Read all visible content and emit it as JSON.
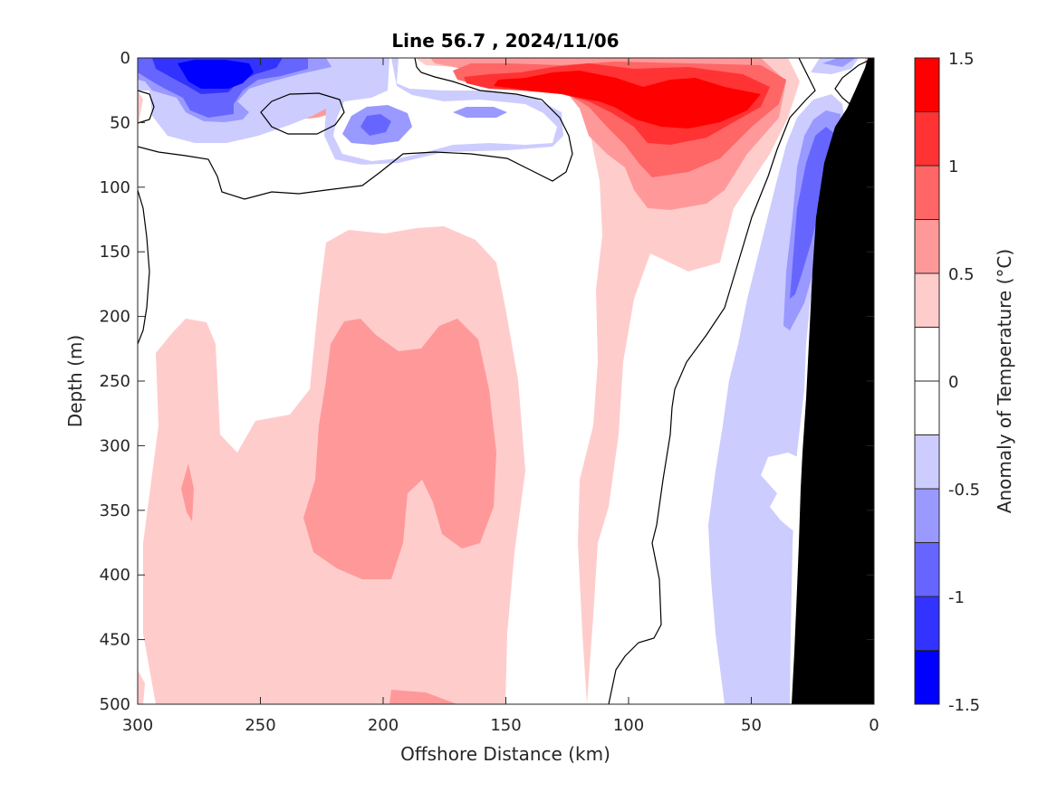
{
  "chart_data": {
    "type": "heatmap",
    "title": "Line 56.7 , 2024/11/06",
    "xlabel": "Offshore Distance (km)",
    "ylabel": "Depth (m)",
    "xlim": [
      300,
      0
    ],
    "ylim": [
      0,
      500
    ],
    "x_reversed": true,
    "y_reversed": true,
    "x_ticks": [
      300,
      250,
      200,
      150,
      100,
      50,
      0
    ],
    "y_ticks": [
      0,
      50,
      100,
      150,
      200,
      250,
      300,
      350,
      400,
      450,
      500
    ],
    "colorbar": {
      "label": "Anomaly of Temperature (°C)",
      "range": [
        -1.5,
        1.5
      ],
      "step": 0.25,
      "tick_values": [
        1.5,
        1,
        0.5,
        0,
        -0.5,
        -1,
        -1.5
      ],
      "tick_labels": [
        "1.5",
        "1",
        "0.5",
        "0",
        "-0.5",
        "-1",
        "-1.5"
      ],
      "colors": [
        "#0000ff",
        "#3333ff",
        "#6666ff",
        "#9999ff",
        "#ccccff",
        "#ffffff",
        "#ffffff",
        "#ffcccc",
        "#ff9999",
        "#ff6666",
        "#ff3333",
        "#ff0000"
      ]
    },
    "features": [
      {
        "kind": "warm-core",
        "label": "subsurface warm core",
        "x": [
          210,
          150
        ],
        "depth": [
          200,
          390
        ],
        "anomaly": 0.5
      },
      {
        "kind": "warm-core",
        "label": "upper warm core",
        "x": [
          130,
          40
        ],
        "depth": [
          10,
          110
        ],
        "anomaly": 1.25
      },
      {
        "kind": "cold-core",
        "label": "near-surface cold core",
        "x": [
          290,
          230
        ],
        "depth": [
          0,
          40
        ],
        "anomaly": -1.25
      },
      {
        "kind": "cold-core",
        "label": "nearshore cold band",
        "x": [
          50,
          10
        ],
        "depth": [
          40,
          500
        ],
        "anomaly": -0.5
      },
      {
        "kind": "bathymetry",
        "label": "seafloor",
        "x": [
          35,
          0
        ],
        "depth": [
          30,
          500
        ],
        "color": "#000000"
      }
    ],
    "grid": false,
    "legend": "colorbar-right"
  }
}
